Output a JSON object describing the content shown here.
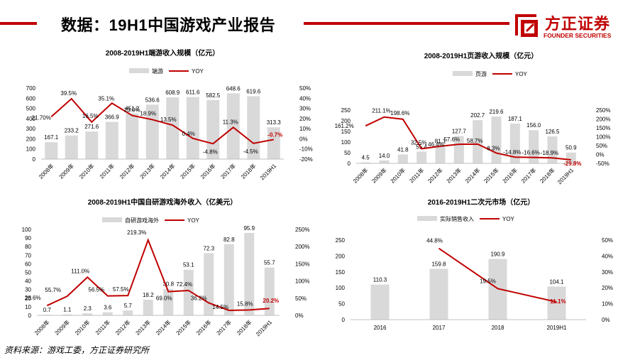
{
  "header": {
    "title": "数据：19H1中国游戏产业报告",
    "logo_cn": "方正证券",
    "logo_en": "FOUNDER SECURITIES"
  },
  "footer": {
    "source": "资料来源：游戏工委，方正证券研究所"
  },
  "colors": {
    "bar": "#d9d9d9",
    "line": "#c00000",
    "accent": "#c00000"
  },
  "chart_data": [
    {
      "type": "bar",
      "title": "2008-2019H1端游收入规模（亿元）",
      "categories": [
        "2008年",
        "2009年",
        "2010年",
        "2011年",
        "2012年",
        "2013年",
        "2014年",
        "2015年",
        "2016年",
        "2017年",
        "2018年",
        "2019H1"
      ],
      "series": [
        {
          "name": "端游",
          "type": "bar",
          "axis": "left",
          "values": [
            167.1,
            233.2,
            271.6,
            366.9,
            451.2,
            536.6,
            608.9,
            611.6,
            582.5,
            648.6,
            619.6,
            313.3
          ]
        },
        {
          "name": "YOY",
          "type": "line",
          "axis": "right",
          "values": [
            21.7,
            39.5,
            16.5,
            35.1,
            23.0,
            18.9,
            13.5,
            0.4,
            -4.8,
            11.3,
            -4.5,
            -0.7
          ],
          "labels": [
            "21.70%",
            "39.5%",
            "16.5%",
            "35.1%",
            "23.0%",
            "18.9%",
            "13.5%",
            "0.4%",
            "-4.8%",
            "11.3%",
            "-4.5%",
            "-0.7%"
          ]
        }
      ],
      "ylim_left": [
        0,
        700
      ],
      "yticks_left": [
        "0",
        "100",
        "200",
        "300",
        "400",
        "500",
        "600",
        "700"
      ],
      "ylim_right": [
        -20,
        50
      ],
      "yticks_right": [
        "-20%",
        "-10%",
        "0%",
        "10%",
        "20%",
        "30%",
        "40%",
        "50%"
      ],
      "legend": "top-center",
      "grid": false
    },
    {
      "type": "bar",
      "title": "2008-2019H1页游收入规模（亿元）",
      "categories": [
        "2008年",
        "2009年",
        "2010年",
        "2011年",
        "2012年",
        "2013年",
        "2014年",
        "2015年",
        "2016年",
        "2017年",
        "2018年",
        "2019H1"
      ],
      "series": [
        {
          "name": "页游",
          "type": "bar",
          "axis": "left",
          "values": [
            4.5,
            14.0,
            41.8,
            55.4,
            81.1,
            127.7,
            202.7,
            219.6,
            187.1,
            156.0,
            126.5,
            50.9
          ]
        },
        {
          "name": "YOY",
          "type": "line",
          "axis": "right",
          "values": [
            161.2,
            211.1,
            198.6,
            32.5,
            46.4,
            57.6,
            58.7,
            8.3,
            -14.8,
            -16.6,
            -18.9,
            -29.8
          ],
          "labels": [
            "161.2%",
            "211.1%",
            "198.6%",
            "32.5%",
            "46.4%",
            "57.6%",
            "58.7%",
            "8.3%",
            "-14.8%",
            "-16.6%",
            "-18.9%",
            "-29.8%"
          ]
        }
      ],
      "ylim_left": [
        0,
        250
      ],
      "yticks_left": [
        "0",
        "50",
        "100",
        "150",
        "200",
        "250"
      ],
      "ylim_right": [
        -50,
        250
      ],
      "yticks_right": [
        "-50%",
        "0%",
        "50%",
        "100%",
        "150%",
        "200%",
        "250%"
      ],
      "legend": "top-center",
      "grid": false
    },
    {
      "type": "bar",
      "title": "2008-2019H1中国自研游戏海外收入（亿美元）",
      "categories": [
        "2008年",
        "2009年",
        "2010年",
        "2011年",
        "2012年",
        "2013年",
        "2014年",
        "2015年",
        "2016年",
        "2017年",
        "2018年",
        "2019H1"
      ],
      "series": [
        {
          "name": "自研游戏海外",
          "type": "bar",
          "axis": "left",
          "values": [
            0.7,
            1.1,
            2.3,
            3.6,
            5.7,
            18.2,
            30.8,
            53.1,
            72.3,
            82.8,
            95.9,
            55.7
          ]
        },
        {
          "name": "YOY",
          "type": "line",
          "axis": "right",
          "values": [
            28.6,
            55.7,
            111.0,
            56.5,
            57.5,
            219.3,
            69.0,
            72.4,
            36.2,
            14.5,
            15.8,
            20.2
          ],
          "labels": [
            "28.6%",
            "55.7%",
            "111.0%",
            "56.5%",
            "57.5%",
            "219.3%",
            "69.0%",
            "72.4%",
            "36.2%",
            "14.5%",
            "15.8%",
            "20.2%"
          ]
        }
      ],
      "ylim_left": [
        0,
        100
      ],
      "yticks_left": [
        "0",
        "10",
        "20",
        "30",
        "40",
        "50",
        "60",
        "70",
        "80",
        "90",
        "100"
      ],
      "ylim_right": [
        0,
        250
      ],
      "yticks_right": [
        "0%",
        "50%",
        "100%",
        "150%",
        "200%",
        "250%"
      ],
      "legend": "top-center",
      "grid": false
    },
    {
      "type": "bar",
      "title": "2016-2019H1二次元市场（亿元）",
      "categories": [
        "2016",
        "2017",
        "2018",
        "2019H1"
      ],
      "series": [
        {
          "name": "实际销售收入",
          "type": "bar",
          "axis": "left",
          "values": [
            110.3,
            159.8,
            190.9,
            104.1
          ]
        },
        {
          "name": "YOY",
          "type": "line",
          "axis": "right",
          "values": [
            null,
            44.8,
            19.5,
            11.1
          ],
          "labels": [
            "",
            "44.8%",
            "19.5%",
            "11.1%"
          ]
        }
      ],
      "ylim_left": [
        0,
        250
      ],
      "yticks_left": [
        "0",
        "50",
        "100",
        "150",
        "200",
        "250"
      ],
      "ylim_right": [
        0,
        50
      ],
      "yticks_right": [
        "0%",
        "10%",
        "20%",
        "30%",
        "40%",
        "50%"
      ],
      "legend": "top-center",
      "grid": false
    }
  ]
}
